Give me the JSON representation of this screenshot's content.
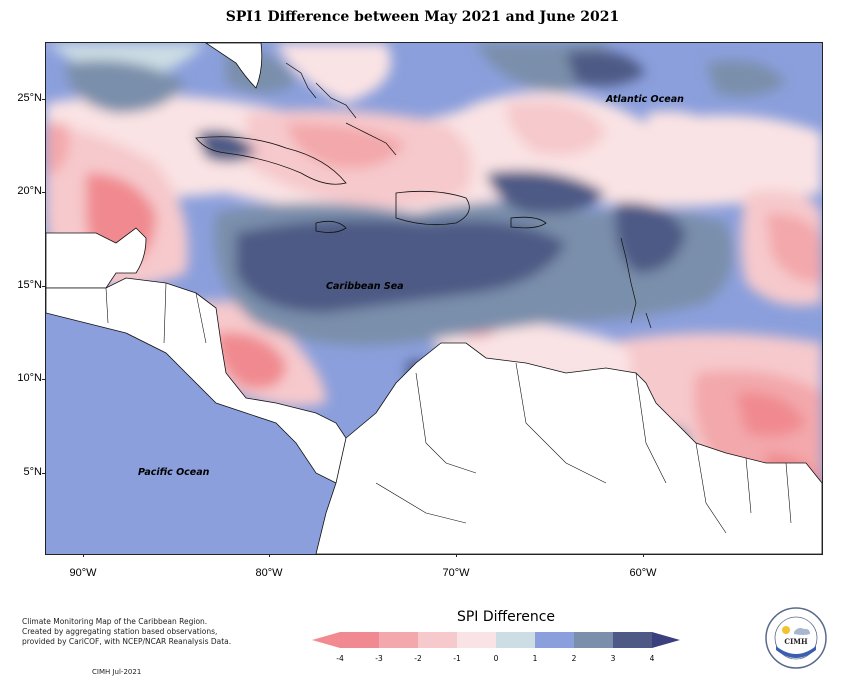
{
  "title": "SPI1 Difference between May 2021 and June 2021",
  "map": {
    "y_ticks": [
      "25°N",
      "20°N",
      "15°N",
      "10°N",
      "5°N"
    ],
    "x_ticks": [
      "90°W",
      "80°W",
      "70°W",
      "60°W"
    ],
    "labels": {
      "atlantic": "Atlantic Ocean",
      "caribbean": "Caribbean Sea",
      "pacific": "Pacific Ocean"
    }
  },
  "legend": {
    "title": "SPI Difference",
    "ticks": [
      "-4",
      "-3",
      "-2",
      "-1",
      "0",
      "1",
      "2",
      "3",
      "4"
    ],
    "colors": [
      "#f08a90",
      "#f3a8ab",
      "#f6c9cc",
      "#fae3e4",
      "#ccdde4",
      "#8b9fdc",
      "#7a8fab",
      "#4e5a85"
    ],
    "arrow_low": "#f28b8f",
    "arrow_high": "#3c3f7d"
  },
  "notes": {
    "line1": "Climate Monitoring Map of the Caribbean Region.",
    "line2": "Created by aggregating station based observations,",
    "line3": "provided by CariCOF, with NCEP/NCAR Reanalysis Data.",
    "credit": "CIMH  Jul-2021"
  },
  "logo": {
    "text": "CIMH",
    "ring_text": "Caribbean Institute for Meteorology and Hydrology"
  }
}
